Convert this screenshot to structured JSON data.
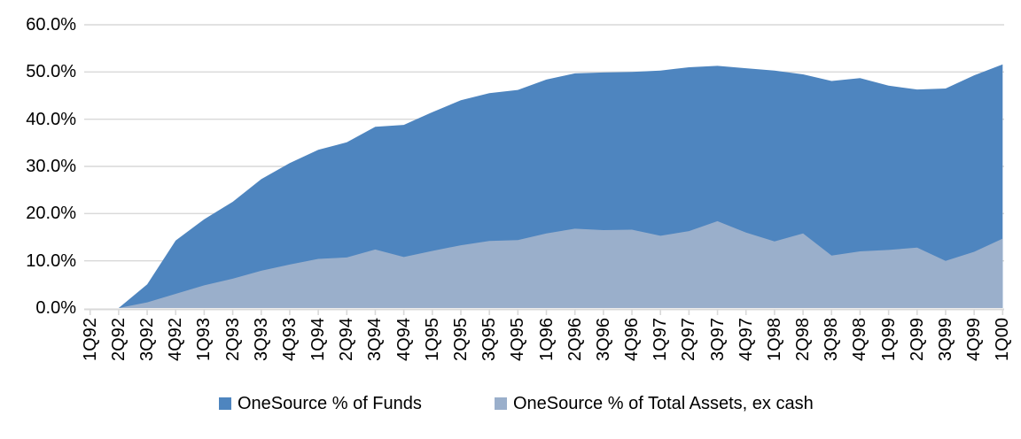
{
  "chart_data": {
    "type": "area",
    "overlap": true,
    "title": "",
    "xlabel": "",
    "ylabel": "",
    "grid": true,
    "legend_position": "bottom",
    "background_color": "#FFFFFF",
    "gridline_color": "#D9D9D9",
    "axis_color": "#D9D9D9",
    "text_color": "#000000",
    "y_axis": {
      "min": 0,
      "max": 60,
      "step": 10,
      "unit": "%",
      "tick_labels": [
        "60.0%",
        "50.0%",
        "40.0%",
        "30.0%",
        "20.0%",
        "10.0%",
        "0.0%"
      ]
    },
    "categories": [
      "1Q92",
      "2Q92",
      "3Q92",
      "4Q92",
      "1Q93",
      "2Q93",
      "3Q93",
      "4Q93",
      "1Q94",
      "2Q94",
      "3Q94",
      "4Q94",
      "1Q95",
      "2Q95",
      "3Q95",
      "4Q95",
      "1Q96",
      "2Q96",
      "3Q96",
      "4Q96",
      "1Q97",
      "2Q97",
      "3Q97",
      "4Q97",
      "1Q98",
      "2Q98",
      "3Q98",
      "4Q98",
      "1Q99",
      "2Q99",
      "3Q99",
      "4Q99",
      "1Q00"
    ],
    "series": [
      {
        "name": "OneSource % of Funds",
        "color": "#4E85BF",
        "values": [
          0.0,
          0.0,
          5.0,
          14.3,
          18.8,
          22.5,
          27.3,
          30.7,
          33.5,
          35.1,
          38.4,
          38.8,
          41.5,
          44.0,
          45.5,
          46.2,
          48.4,
          49.7,
          49.9,
          50.0,
          50.3,
          51.0,
          51.3,
          50.8,
          50.3,
          49.5,
          48.1,
          48.7,
          47.1,
          46.3,
          46.5,
          49.3,
          51.6
        ]
      },
      {
        "name": "OneSource % of Total Assets, ex cash",
        "color": "#9AAFCB",
        "values": [
          0.0,
          0.0,
          1.2,
          3.0,
          4.8,
          6.2,
          7.9,
          9.2,
          10.4,
          10.7,
          12.4,
          10.8,
          12.1,
          13.3,
          14.2,
          14.4,
          15.8,
          16.8,
          16.5,
          16.6,
          15.3,
          16.3,
          18.4,
          16.0,
          14.1,
          15.8,
          11.1,
          12.0,
          12.3,
          12.8,
          10.0,
          11.9,
          14.7
        ]
      }
    ]
  }
}
